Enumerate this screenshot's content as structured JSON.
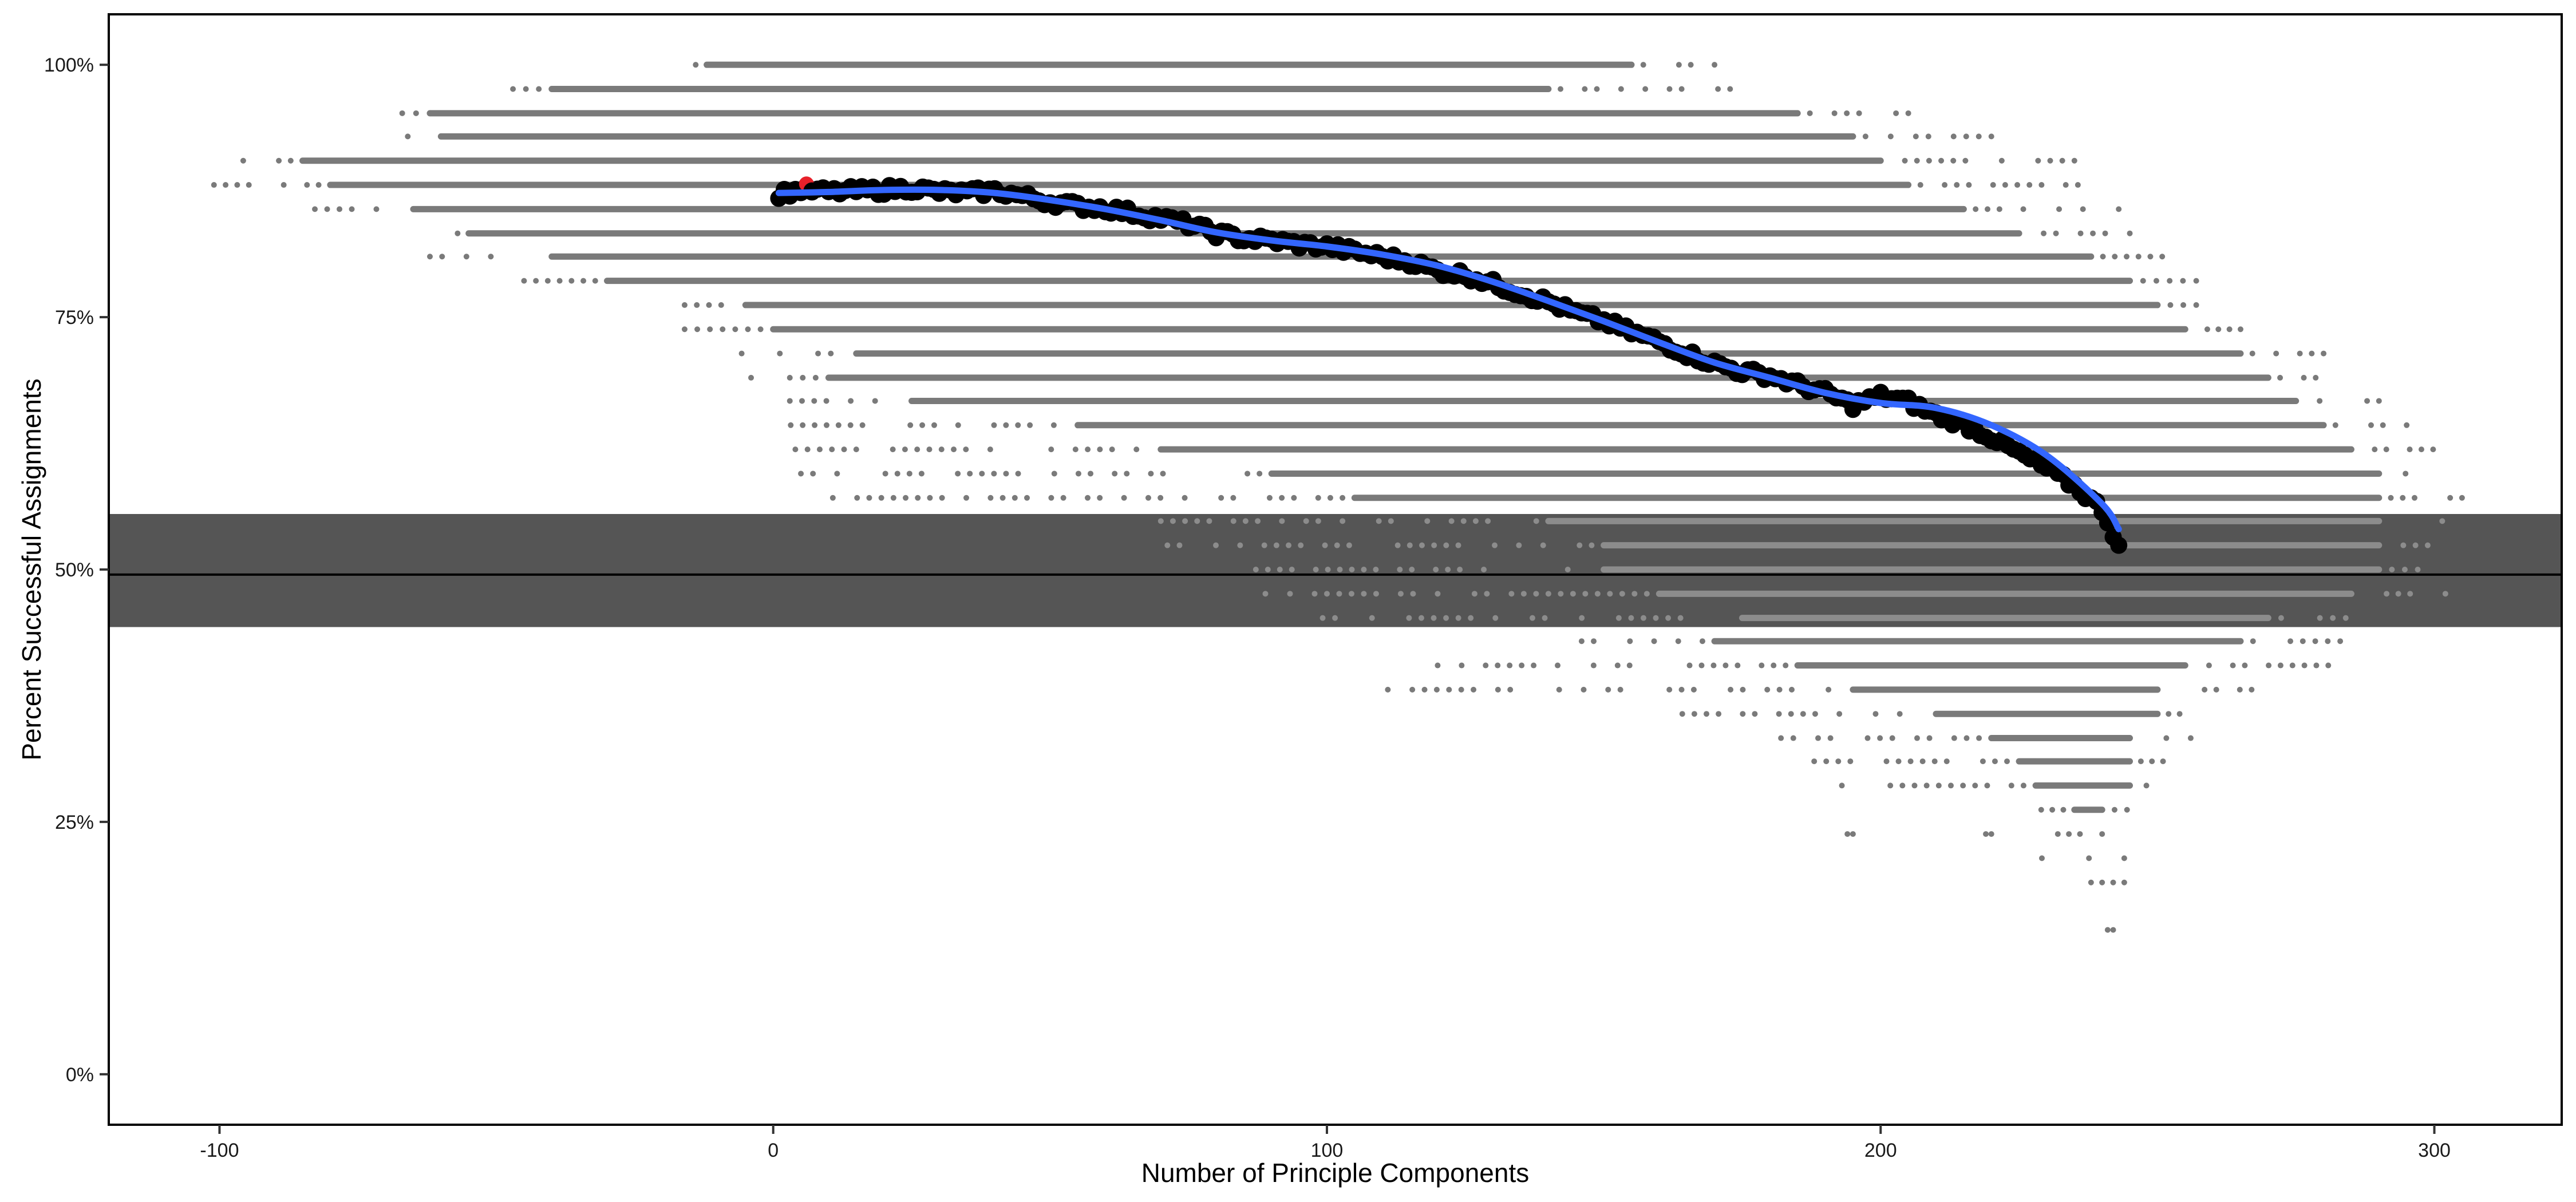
{
  "chart_data": {
    "type": "scatter",
    "title": "",
    "xlabel": "Number of Principle Components",
    "ylabel": "Percent Successful Assignments",
    "xlim": [
      -120,
      323
    ],
    "ylim": [
      -5,
      105
    ],
    "x_ticks": [
      {
        "value": -100,
        "label": "-100"
      },
      {
        "value": 0,
        "label": "0"
      },
      {
        "value": 100,
        "label": "100"
      },
      {
        "value": 200,
        "label": "200"
      },
      {
        "value": 300,
        "label": "300"
      }
    ],
    "y_ticks": [
      {
        "value": 0,
        "label": "0%"
      },
      {
        "value": 25,
        "label": "25%"
      },
      {
        "value": 50,
        "label": "50%"
      },
      {
        "value": 75,
        "label": "75%"
      },
      {
        "value": 100,
        "label": "100%"
      }
    ],
    "grid": false,
    "legend": "none",
    "reference_line": {
      "y": 49.5
    },
    "reference_band": {
      "ymin": 44.3,
      "ymax": 55.5
    },
    "background_points": {
      "description_levels": "grey replicate points, one row per percent level",
      "rows": [
        {
          "y": 100.0,
          "dense": [
            -12,
            155
          ],
          "sparse": [
            [
              -14,
              -12
            ],
            [
              155,
              170
            ]
          ]
        },
        {
          "y": 97.6,
          "dense": [
            -40,
            140
          ],
          "sparse": [
            [
              -47,
              -40
            ],
            [
              140,
              175
            ]
          ]
        },
        {
          "y": 95.2,
          "dense": [
            -62,
            185
          ],
          "sparse": [
            [
              -67,
              -62
            ],
            [
              185,
              205
            ]
          ]
        },
        {
          "y": 92.9,
          "dense": [
            -60,
            195
          ],
          "sparse": [
            [
              -68,
              -60
            ],
            [
              195,
              220
            ]
          ]
        },
        {
          "y": 90.5,
          "dense": [
            -85,
            200
          ],
          "sparse": [
            [
              -100,
              -85
            ],
            [
              200,
              235
            ]
          ]
        },
        {
          "y": 88.1,
          "dense": [
            -80,
            205
          ],
          "sparse": [
            [
              -101,
              -80
            ],
            [
              205,
              240
            ]
          ]
        },
        {
          "y": 85.7,
          "dense": [
            -65,
            215
          ],
          "sparse": [
            [
              -85,
              -65
            ],
            [
              215,
              243
            ]
          ]
        },
        {
          "y": 83.3,
          "dense": [
            -55,
            225
          ],
          "sparse": [
            [
              -63,
              -55
            ],
            [
              225,
              245
            ]
          ]
        },
        {
          "y": 81.0,
          "dense": [
            -40,
            238
          ],
          "sparse": [
            [
              -62,
              -40
            ],
            [
              238,
              253
            ]
          ]
        },
        {
          "y": 78.6,
          "dense": [
            -30,
            245
          ],
          "sparse": [
            [
              -45,
              -30
            ],
            [
              245,
              257
            ]
          ]
        },
        {
          "y": 76.2,
          "dense": [
            -5,
            250
          ],
          "sparse": [
            [
              -16,
              -5
            ],
            [
              250,
              257
            ]
          ]
        },
        {
          "y": 73.8,
          "dense": [
            0,
            255
          ],
          "sparse": [
            [
              -16,
              0
            ],
            [
              255,
              265
            ]
          ]
        },
        {
          "y": 71.4,
          "dense": [
            15,
            265
          ],
          "sparse": [
            [
              -8,
              15
            ],
            [
              265,
              280
            ]
          ]
        },
        {
          "y": 69.0,
          "dense": [
            10,
            270
          ],
          "sparse": [
            [
              -4,
              10
            ],
            [
              270,
              285
            ]
          ]
        },
        {
          "y": 66.7,
          "dense": [
            25,
            275
          ],
          "sparse": [
            [
              3,
              25
            ],
            [
              275,
              290
            ]
          ]
        },
        {
          "y": 64.3,
          "dense": [
            55,
            280
          ],
          "sparse": [
            [
              1,
              55
            ],
            [
              280,
              295
            ]
          ]
        },
        {
          "y": 61.9,
          "dense": [
            70,
            285
          ],
          "sparse": [
            [
              4,
              70
            ],
            [
              285,
              304
            ]
          ]
        },
        {
          "y": 59.5,
          "dense": [
            90,
            290
          ],
          "sparse": [
            [
              5,
              90
            ],
            [
              290,
              302
            ]
          ]
        },
        {
          "y": 57.1,
          "dense": [
            105,
            290
          ],
          "sparse": [
            [
              2,
              105
            ],
            [
              290,
              305
            ]
          ]
        },
        {
          "y": 54.8,
          "dense": [
            140,
            290
          ],
          "sparse": [
            [
              70,
              140
            ],
            [
              290,
              306
            ]
          ]
        },
        {
          "y": 52.4,
          "dense": [
            150,
            290
          ],
          "sparse": [
            [
              69,
              150
            ],
            [
              290,
              301
            ]
          ]
        },
        {
          "y": 50.0,
          "dense": [
            150,
            290
          ],
          "sparse": [
            [
              85,
              150
            ],
            [
              290,
              297
            ]
          ]
        },
        {
          "y": 47.6,
          "dense": [
            160,
            285
          ],
          "sparse": [
            [
              80,
              160
            ],
            [
              285,
              302
            ]
          ]
        },
        {
          "y": 45.2,
          "dense": [
            175,
            270
          ],
          "sparse": [
            [
              97,
              175
            ],
            [
              270,
              284
            ]
          ]
        },
        {
          "y": 42.9,
          "dense": [
            170,
            265
          ],
          "sparse": [
            [
              146,
              170
            ],
            [
              265,
              283
            ]
          ]
        },
        {
          "y": 40.5,
          "dense": [
            185,
            255
          ],
          "sparse": [
            [
              120,
              185
            ],
            [
              255,
              283
            ]
          ]
        },
        {
          "y": 38.1,
          "dense": [
            195,
            250
          ],
          "sparse": [
            [
              111,
              195
            ],
            [
              250,
              267
            ]
          ]
        },
        {
          "y": 35.7,
          "dense": [
            210,
            250
          ],
          "sparse": [
            [
              162,
              210
            ],
            [
              250,
              254
            ]
          ]
        },
        {
          "y": 33.3,
          "dense": [
            220,
            245
          ],
          "sparse": [
            [
              182,
              220
            ],
            [
              245,
              256
            ]
          ]
        },
        {
          "y": 31.0,
          "dense": [
            225,
            245
          ],
          "sparse": [
            [
              188,
              225
            ],
            [
              245,
              251
            ]
          ]
        },
        {
          "y": 28.6,
          "dense": [
            228,
            245
          ],
          "sparse": [
            [
              193,
              228
            ],
            [
              245,
              248
            ]
          ]
        },
        {
          "y": 26.2,
          "dense": [
            235,
            240
          ],
          "sparse": [
            [
              229,
              235
            ],
            [
              240,
              249
            ]
          ]
        },
        {
          "y": 23.8,
          "dense": [],
          "sparse": [
            [
              194,
              195
            ],
            [
              219,
              220
            ],
            [
              232,
              240
            ]
          ]
        },
        {
          "y": 21.4,
          "dense": [],
          "sparse": [
            [
              227,
              244
            ]
          ]
        },
        {
          "y": 19.0,
          "dense": [],
          "sparse": [
            [
              238,
              244
            ]
          ]
        },
        {
          "y": 14.3,
          "dense": [],
          "sparse": [
            [
              241,
              242
            ]
          ]
        }
      ]
    },
    "series": [
      {
        "type": "points",
        "color": "#000000",
        "x": [
          1,
          5,
          10,
          15,
          20,
          25,
          30,
          35,
          40,
          45,
          50,
          55,
          60,
          65,
          70,
          75,
          80,
          85,
          90,
          95,
          100,
          105,
          110,
          115,
          120,
          125,
          130,
          135,
          140,
          145,
          150,
          155,
          160,
          165,
          170,
          175,
          180,
          185,
          190,
          195,
          200,
          205,
          210,
          215,
          220,
          225,
          230,
          235,
          240,
          243
        ],
        "y": [
          87.2,
          87.6,
          87.4,
          87.5,
          87.6,
          87.8,
          87.4,
          87.3,
          87.5,
          87.0,
          86.4,
          86.0,
          85.8,
          85.3,
          84.8,
          84.2,
          83.3,
          82.8,
          82.6,
          82.2,
          82.0,
          81.5,
          81.0,
          80.5,
          79.6,
          79.2,
          78.3,
          77.4,
          76.5,
          75.4,
          74.6,
          73.5,
          72.6,
          71.4,
          70.4,
          69.6,
          69.2,
          68.3,
          67.5,
          66.3,
          67.2,
          66.6,
          65.3,
          64.4,
          63.1,
          61.5,
          60.0,
          58.3,
          56.0,
          52.4
        ]
      },
      {
        "type": "highlight",
        "color": "#e8202a",
        "x": [
          6
        ],
        "y": [
          88.2
        ]
      },
      {
        "type": "smooth",
        "color": "#3366ff",
        "x": [
          1,
          10,
          20,
          30,
          40,
          50,
          60,
          70,
          80,
          90,
          100,
          110,
          120,
          130,
          140,
          150,
          160,
          170,
          180,
          190,
          200,
          210,
          220,
          230,
          240,
          243
        ],
        "y": [
          87.3,
          87.4,
          87.6,
          87.6,
          87.3,
          86.6,
          85.7,
          84.6,
          83.4,
          82.6,
          82.0,
          81.2,
          80.1,
          78.5,
          76.6,
          74.6,
          72.5,
          70.5,
          69.0,
          67.5,
          66.5,
          66.0,
          64.3,
          61.3,
          56.5,
          54.0
        ]
      }
    ]
  }
}
